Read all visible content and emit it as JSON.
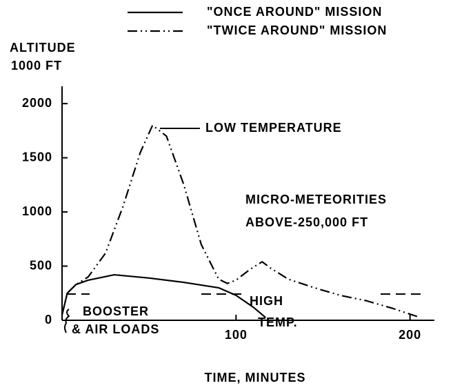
{
  "chart_data": {
    "type": "line",
    "y_axis_label": [
      "ALTITUDE",
      "1000 FT"
    ],
    "x_axis_label": "TIME, MINUTES",
    "xlim": [
      0,
      214
    ],
    "xticks": [
      100,
      200
    ],
    "ylim": [
      0,
      2160
    ],
    "yticks": [
      0,
      500,
      1000,
      1500,
      2000
    ],
    "legend": "top",
    "series": [
      {
        "name": "\"ONCE AROUND\" MISSION",
        "color": "#000000",
        "dash": "solid",
        "x": [
          0,
          3,
          8,
          15,
          30,
          50,
          70,
          90,
          100,
          110,
          117
        ],
        "values": [
          50,
          250,
          330,
          370,
          420,
          390,
          350,
          300,
          230,
          120,
          25
        ]
      },
      {
        "name": "\"TWICE AROUND\" MISSION",
        "color": "#000000",
        "dash": "dashdot",
        "x": [
          0,
          3,
          8,
          15,
          25,
          35,
          45,
          52,
          60,
          70,
          80,
          90,
          95,
          100,
          108,
          115,
          120,
          130,
          145,
          160,
          175,
          190,
          205
        ],
        "values": [
          50,
          250,
          330,
          400,
          620,
          1050,
          1550,
          1800,
          1700,
          1250,
          700,
          380,
          340,
          370,
          470,
          540,
          480,
          380,
          300,
          230,
          180,
          110,
          30
        ]
      }
    ],
    "annotations": [
      "LOW TEMPERATURE",
      "MICRO-METEORITIES",
      "ABOVE-250,000 FT",
      "HIGH",
      "TEMP.",
      "BOOSTER",
      "& AIR LOADS"
    ]
  }
}
